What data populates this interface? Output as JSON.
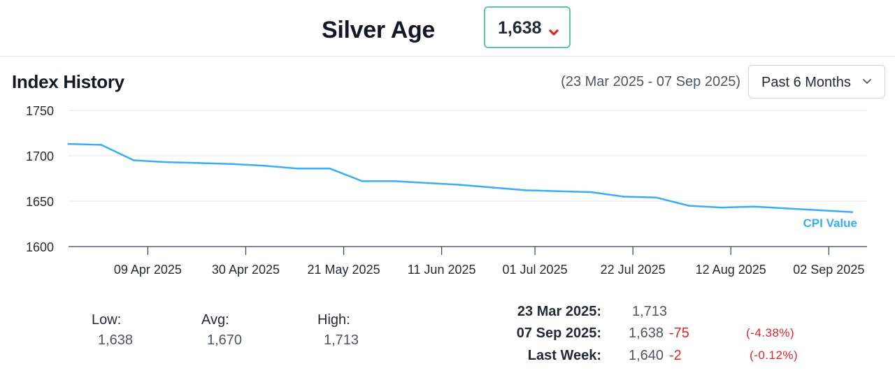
{
  "header": {
    "title": "Silver Age",
    "index_value": "1,638",
    "trend_icon": "chevron-down-icon",
    "trend_color": "#dc2626",
    "badge_border_color": "#5ec79a"
  },
  "history": {
    "title": "Index History",
    "date_range": "(23 Mar 2025 - 07 Sep 2025)",
    "period_selector": "Past 6 Months"
  },
  "chart_data": {
    "type": "line",
    "x_start": "2025-03-23",
    "ylim": [
      1600,
      1750
    ],
    "yticks": [
      "1750",
      "1700",
      "1650",
      "1600"
    ],
    "xticks": [
      "09 Apr 2025",
      "30 Apr 2025",
      "21 May 2025",
      "11 Jun 2025",
      "01 Jul 2025",
      "22 Jul 2025",
      "12 Aug 2025",
      "02 Sep 2025"
    ],
    "xtick_dates": [
      "2025-04-09",
      "2025-04-30",
      "2025-05-21",
      "2025-06-11",
      "2025-07-01",
      "2025-07-22",
      "2025-08-12",
      "2025-09-02"
    ],
    "grid": true,
    "line_color": "#38aef5",
    "series": [
      {
        "name": "CPI Value",
        "x": [
          "2025-03-23",
          "2025-03-30",
          "2025-04-06",
          "2025-04-13",
          "2025-04-20",
          "2025-04-27",
          "2025-05-04",
          "2025-05-11",
          "2025-05-18",
          "2025-05-25",
          "2025-06-01",
          "2025-06-08",
          "2025-06-15",
          "2025-06-22",
          "2025-06-29",
          "2025-07-06",
          "2025-07-13",
          "2025-07-20",
          "2025-07-27",
          "2025-08-03",
          "2025-08-10",
          "2025-08-17",
          "2025-08-24",
          "2025-08-31",
          "2025-09-07"
        ],
        "y": [
          1713,
          1712,
          1695,
          1693,
          1692,
          1691,
          1689,
          1686,
          1686,
          1672,
          1672,
          1670,
          1668,
          1665,
          1662,
          1661,
          1660,
          1655,
          1654,
          1645,
          1643,
          1644,
          1642,
          1640,
          1638
        ]
      }
    ]
  },
  "stats": {
    "low_label": "Low:",
    "low_value": "1,638",
    "avg_label": "Avg:",
    "avg_value": "1,670",
    "high_label": "High:",
    "high_value": "1,713"
  },
  "comparison": {
    "rows": [
      {
        "label": "23 Mar 2025:",
        "value": "1,713",
        "change": "",
        "pct": ""
      },
      {
        "label": "07 Sep 2025:",
        "value": "1,638",
        "change": "-75",
        "pct": "(-4.38%)"
      },
      {
        "label": "Last Week:",
        "value": "1,640",
        "change": "-2",
        "pct": "(-0.12%)"
      }
    ]
  }
}
